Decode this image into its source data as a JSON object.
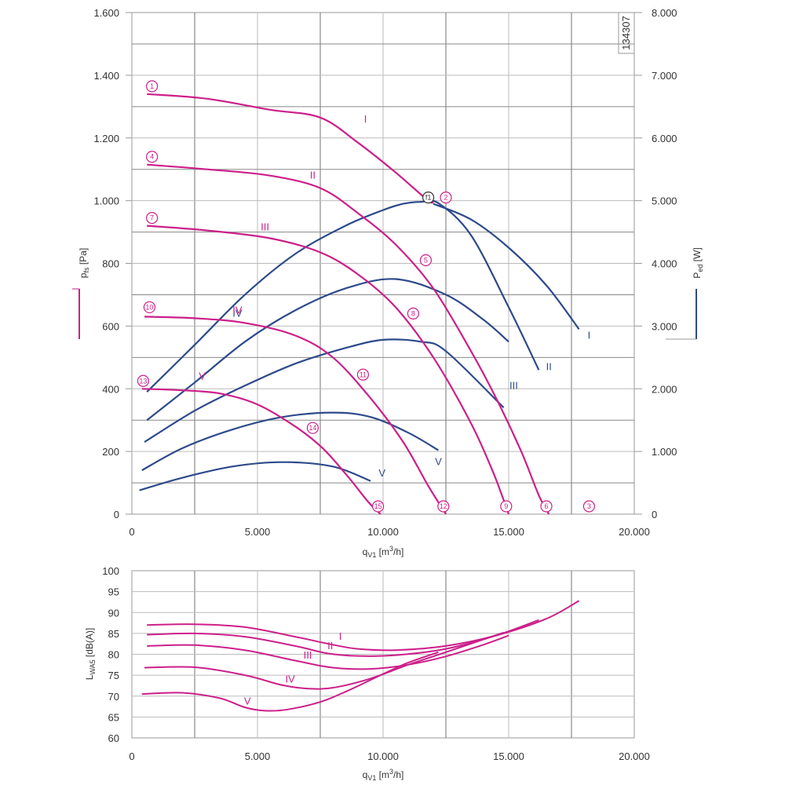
{
  "colors": {
    "pressure": "#cc1f8a",
    "power": "#2d4a8a",
    "grid": "#bbbbbb",
    "grid_major": "#888888"
  },
  "drawing_number": "134307",
  "chart_data": [
    {
      "type": "line",
      "xlabel_main": "q",
      "xlabel_sub": "V1",
      "xlabel_unit": "[m",
      "xlabel_sup": "3",
      "xlabel_tail": "/h]",
      "ylabel_left_main": "p",
      "ylabel_left_sub": "fs",
      "ylabel_left_unit": "[Pa]",
      "ylabel_right_main": "P",
      "ylabel_right_sub": "ed",
      "ylabel_right_unit": "[W]",
      "xlim": [
        0,
        20000
      ],
      "ylim_left": [
        0,
        1600
      ],
      "ylim_right": [
        0,
        8000
      ],
      "x_ticks": [
        0,
        5000,
        10000,
        15000,
        20000
      ],
      "x_tick_labels": [
        "0",
        "5.000",
        "10.000",
        "15.000",
        "20.000"
      ],
      "y_left_ticks": [
        0,
        200,
        400,
        600,
        800,
        1000,
        1200,
        1400,
        1600
      ],
      "y_left_tick_labels": [
        "0",
        "200",
        "400",
        "600",
        "800",
        "1.000",
        "1.200",
        "1.400",
        "1.600"
      ],
      "y_right_ticks": [
        0,
        1000,
        2000,
        3000,
        4000,
        5000,
        6000,
        7000,
        8000
      ],
      "y_right_tick_labels": [
        "0",
        "1.000",
        "2.000",
        "3.000",
        "4.000",
        "5.000",
        "6.000",
        "7.000",
        "8.000"
      ],
      "pressure_series": [
        {
          "name": "I",
          "x": [
            600,
            3000,
            5500,
            7500,
            9000,
            10500,
            11800,
            12000
          ],
          "y": [
            1340,
            1325,
            1290,
            1265,
            1185,
            1090,
            1000,
            1000
          ],
          "label_at": [
            9300,
            1250
          ]
        },
        {
          "name": "II",
          "x": [
            600,
            3000,
            5500,
            7500,
            9000,
            10500,
            12000,
            13500,
            14500,
            15500,
            16200,
            16600
          ],
          "y": [
            1115,
            1100,
            1080,
            1040,
            960,
            860,
            720,
            520,
            370,
            200,
            60,
            0
          ],
          "label_at": [
            7200,
            1070
          ]
        },
        {
          "name": "III",
          "x": [
            600,
            3000,
            5500,
            7500,
            9000,
            10500,
            12000,
            13500,
            14400,
            15000
          ],
          "y": [
            920,
            905,
            880,
            835,
            765,
            660,
            500,
            290,
            130,
            0
          ],
          "label_at": [
            5300,
            905
          ]
        },
        {
          "name": "IV",
          "x": [
            500,
            2500,
            4500,
            6500,
            8000,
            9500,
            10800,
            11800,
            12500
          ],
          "y": [
            630,
            625,
            610,
            570,
            500,
            370,
            230,
            90,
            0
          ],
          "label_at": [
            4200,
            640
          ]
        },
        {
          "name": "V",
          "x": [
            400,
            2000,
            3500,
            5000,
            6500,
            7600,
            8600,
            9400,
            9900
          ],
          "y": [
            400,
            395,
            385,
            350,
            280,
            210,
            120,
            40,
            0
          ],
          "label_at": [
            2800,
            430
          ]
        }
      ],
      "power_series": [
        {
          "name": "I",
          "x": [
            12000,
            13500,
            15000,
            16500,
            17800
          ],
          "y": [
            4950,
            4700,
            4250,
            3650,
            2950
          ],
          "label_at": [
            18200,
            2800
          ]
        },
        {
          "name": "II",
          "x": [
            600,
            2500,
            4500,
            6500,
            8500,
            10000,
            10800,
            11500,
            12200,
            13500,
            15000,
            16200
          ],
          "y": [
            1950,
            2700,
            3500,
            4150,
            4600,
            4850,
            4950,
            4980,
            4960,
            4450,
            3300,
            2300
          ],
          "label_at": [
            16600,
            2300
          ]
        },
        {
          "name": "III",
          "x": [
            600,
            2500,
            4500,
            6500,
            8500,
            10500,
            12500,
            14000,
            15000
          ],
          "y": [
            1500,
            2100,
            2750,
            3250,
            3600,
            3750,
            3500,
            3100,
            2750
          ],
          "label_at": [
            15200,
            2000
          ]
        },
        {
          "name": "IV",
          "x": [
            500,
            2500,
            4500,
            6500,
            8500,
            10000,
            11500,
            12500,
            14800
          ],
          "y": [
            1150,
            1650,
            2050,
            2400,
            2650,
            2780,
            2750,
            2600,
            1700
          ],
          "label_at": [
            4200,
            3150
          ]
        },
        {
          "name": "V",
          "x": [
            400,
            2000,
            4000,
            6000,
            8000,
            9500,
            11000,
            12200
          ],
          "y": [
            700,
            1050,
            1350,
            1550,
            1620,
            1550,
            1300,
            1020
          ],
          "label_at": [
            12200,
            780
          ]
        },
        {
          "name": "V2",
          "x": [
            300,
            2000,
            4000,
            6000,
            8000,
            9500
          ],
          "y": [
            380,
            580,
            760,
            830,
            760,
            530
          ],
          "label_at": [
            9700,
            600
          ]
        }
      ],
      "markers": [
        {
          "label": "1",
          "x": 800,
          "y": 1365,
          "kind": "pressure"
        },
        {
          "label": "2",
          "x": 12500,
          "y": 1010,
          "kind": "pressure"
        },
        {
          "label": "3",
          "x": 18200,
          "y": 25,
          "kind": "pressure"
        },
        {
          "label": "4",
          "x": 800,
          "y": 1140,
          "kind": "pressure"
        },
        {
          "label": "5",
          "x": 11700,
          "y": 810,
          "kind": "pressure"
        },
        {
          "label": "6",
          "x": 16500,
          "y": 25,
          "kind": "pressure"
        },
        {
          "label": "7",
          "x": 800,
          "y": 945,
          "kind": "pressure"
        },
        {
          "label": "8",
          "x": 11200,
          "y": 640,
          "kind": "pressure"
        },
        {
          "label": "9",
          "x": 14900,
          "y": 25,
          "kind": "pressure"
        },
        {
          "label": "10",
          "x": 700,
          "y": 660,
          "kind": "pressure"
        },
        {
          "label": "11",
          "x": 9200,
          "y": 445,
          "kind": "pressure"
        },
        {
          "label": "12",
          "x": 12400,
          "y": 25,
          "kind": "pressure"
        },
        {
          "label": "13",
          "x": 450,
          "y": 425,
          "kind": "pressure"
        },
        {
          "label": "14",
          "x": 7200,
          "y": 275,
          "kind": "pressure"
        },
        {
          "label": "15",
          "x": 9800,
          "y": 25,
          "kind": "pressure"
        },
        {
          "label": "f1",
          "x": 11800,
          "y": 1010,
          "kind": "power"
        }
      ]
    },
    {
      "type": "line",
      "xlabel_main": "q",
      "xlabel_sub": "V1",
      "xlabel_unit": "[m",
      "xlabel_sup": "3",
      "xlabel_tail": "/h]",
      "ylabel_main": "L",
      "ylabel_sub": "WA5",
      "ylabel_unit": "[dB(A)]",
      "xlim": [
        0,
        20000
      ],
      "ylim": [
        60,
        100
      ],
      "x_ticks": [
        0,
        5000,
        10000,
        15000,
        20000
      ],
      "x_tick_labels": [
        "0",
        "5.000",
        "10.000",
        "15.000",
        "20.000"
      ],
      "y_ticks": [
        60,
        65,
        70,
        75,
        80,
        85,
        90,
        95,
        100
      ],
      "y_tick_labels": [
        "60",
        "65",
        "70",
        "75",
        "80",
        "85",
        "90",
        "95",
        "100"
      ],
      "series": [
        {
          "name": "I",
          "x": [
            600,
            2500,
            4500,
            6500,
            8000,
            9000,
            10500,
            12500,
            14500,
            16500,
            17800
          ],
          "y": [
            87.0,
            87.2,
            86.5,
            84.2,
            82.3,
            81.3,
            81.0,
            82.0,
            84.5,
            88.5,
            92.8
          ],
          "label_at": [
            8300,
            83.5
          ]
        },
        {
          "name": "II",
          "x": [
            600,
            2500,
            4500,
            6500,
            7800,
            9000,
            10500,
            12500,
            14500,
            16200
          ],
          "y": [
            84.7,
            85.0,
            84.2,
            82.0,
            80.2,
            79.6,
            79.8,
            81.3,
            84.5,
            88.2
          ],
          "label_at": [
            7900,
            81.2
          ]
        },
        {
          "name": "III",
          "x": [
            600,
            2500,
            4500,
            6500,
            8000,
            9500,
            11000,
            12500,
            14000,
            15000
          ],
          "y": [
            82.0,
            82.2,
            81.0,
            78.5,
            76.8,
            76.5,
            77.5,
            79.5,
            82.3,
            84.5
          ],
          "label_at": [
            7000,
            79.0
          ]
        },
        {
          "name": "IV",
          "x": [
            500,
            2500,
            4500,
            6000,
            7000,
            8000,
            9500,
            11000,
            12500,
            14800
          ],
          "y": [
            76.8,
            76.9,
            75.0,
            72.6,
            71.8,
            72.0,
            74.2,
            77.5,
            80.5,
            85.2
          ],
          "label_at": [
            6300,
            73.2
          ]
        },
        {
          "name": "V",
          "x": [
            400,
            2000,
            3500,
            4500,
            5300,
            6200,
            7500,
            8600,
            9900,
            11000,
            12200
          ],
          "y": [
            70.5,
            70.8,
            69.5,
            67.3,
            66.5,
            66.8,
            68.6,
            71.3,
            75.0,
            78.0,
            80.5
          ],
          "label_at": [
            4600,
            68.0
          ]
        }
      ]
    }
  ]
}
